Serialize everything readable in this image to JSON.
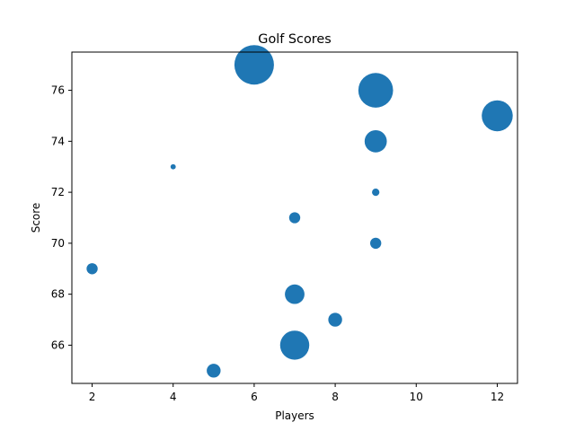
{
  "chart_data": {
    "type": "scatter",
    "title": "Golf Scores",
    "xlabel": "Players",
    "ylabel": "Score",
    "xlim": [
      1.5,
      12.5
    ],
    "ylim": [
      64.5,
      77.5
    ],
    "xticks": [
      2,
      4,
      6,
      8,
      10,
      12
    ],
    "yticks": [
      66,
      68,
      70,
      72,
      74,
      76
    ],
    "grid": false,
    "color": "#1f77b4",
    "points": [
      {
        "x": 6,
        "y": 77,
        "size": 0.57
      },
      {
        "x": 9,
        "y": 76,
        "size": 0.44
      },
      {
        "x": 12,
        "y": 75,
        "size": 0.35
      },
      {
        "x": 9,
        "y": 74,
        "size": 0.18
      },
      {
        "x": 4,
        "y": 73,
        "size": 0.01
      },
      {
        "x": 9,
        "y": 72,
        "size": 0.02
      },
      {
        "x": 7,
        "y": 71,
        "size": 0.045
      },
      {
        "x": 9,
        "y": 70,
        "size": 0.045
      },
      {
        "x": 2,
        "y": 69,
        "size": 0.045
      },
      {
        "x": 7,
        "y": 68,
        "size": 0.14
      },
      {
        "x": 8,
        "y": 67,
        "size": 0.07
      },
      {
        "x": 7,
        "y": 66,
        "size": 0.31
      },
      {
        "x": 5,
        "y": 65,
        "size": 0.07
      }
    ]
  }
}
